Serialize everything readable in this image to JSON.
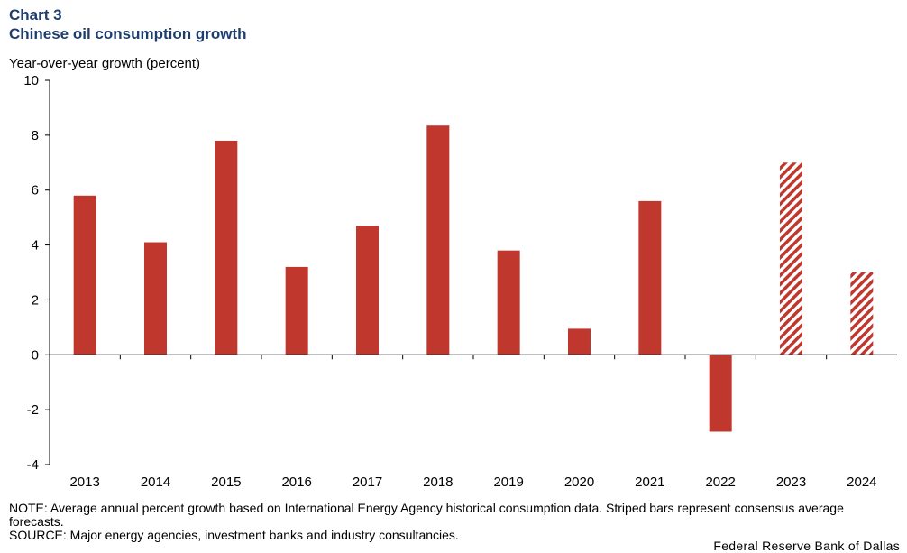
{
  "header": {
    "chart_label": "Chart 3",
    "chart_title": "Chinese oil consumption growth"
  },
  "footer": {
    "note": "NOTE: Average annual percent growth based on International Energy Agency historical consumption data. Striped bars represent consensus average forecasts.",
    "source": "SOURCE: Major energy agencies, investment banks and industry consultancies.",
    "credit": "Federal Reserve Bank of Dallas"
  },
  "colors": {
    "bar": "#c0372d",
    "axis": "#000000"
  },
  "chart_data": {
    "type": "bar",
    "title": "Chinese oil consumption growth",
    "ylabel": "Year-over-year  growth  (percent)",
    "xlabel": "",
    "categories": [
      "2013",
      "2014",
      "2015",
      "2016",
      "2017",
      "2018",
      "2019",
      "2020",
      "2021",
      "2022",
      "2023",
      "2024"
    ],
    "values": [
      5.8,
      4.1,
      7.8,
      3.2,
      4.7,
      8.35,
      3.8,
      0.95,
      5.6,
      -2.8,
      7.0,
      3.0
    ],
    "forecast": [
      false,
      false,
      false,
      false,
      false,
      false,
      false,
      false,
      false,
      false,
      true,
      true
    ],
    "ylim": [
      -4,
      10
    ],
    "yticks": [
      -4,
      -2,
      0,
      2,
      4,
      6,
      8,
      10
    ],
    "ytick_labels": [
      "-4",
      "-2",
      "0",
      "2",
      "4",
      "6",
      "8",
      "10"
    ],
    "grid": false,
    "legend": "none"
  }
}
